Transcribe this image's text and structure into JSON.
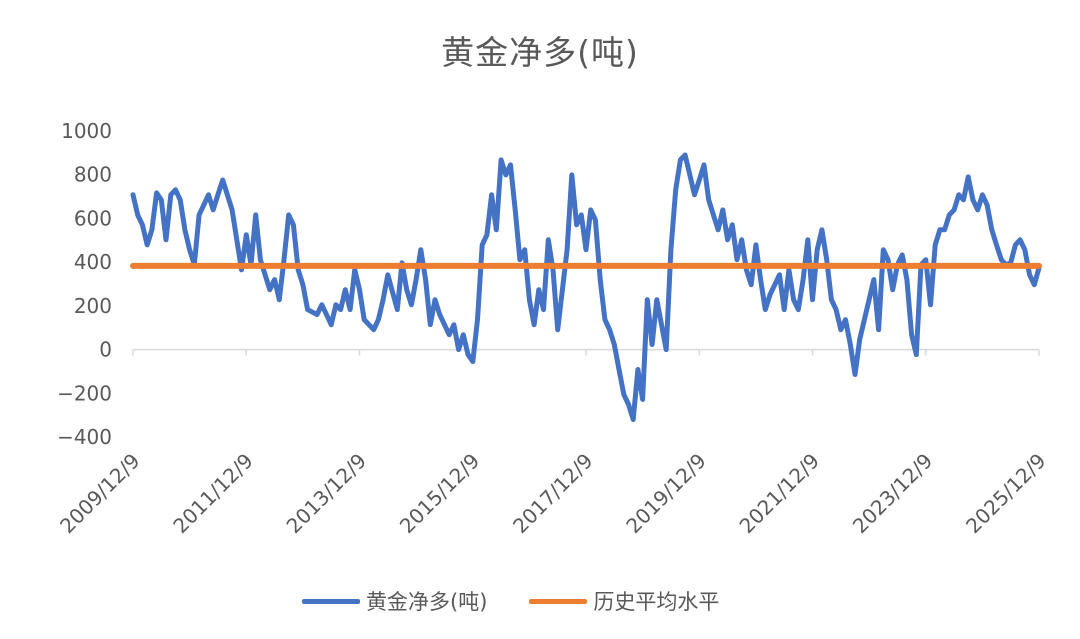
{
  "chart_data": {
    "type": "line",
    "title": "黄金净多(吨)",
    "xlabel": "",
    "ylabel": "",
    "ylim": [
      -400,
      1000
    ],
    "yticks": [
      "1000",
      "800",
      "600",
      "400",
      "200",
      "0",
      "-200",
      "-400"
    ],
    "ytick_values": [
      1000,
      800,
      600,
      400,
      200,
      0,
      -200,
      -400
    ],
    "xlim": [
      "2009-12",
      "2025-12"
    ],
    "xticks": [
      "2009/12/9",
      "2011/12/9",
      "2013/12/9",
      "2015/12/9",
      "2017/12/9",
      "2019/12/9",
      "2021/12/9",
      "2023/12/9",
      "2025/12/9"
    ],
    "xtick_dates": [
      "2009-12",
      "2011-12",
      "2013-12",
      "2015-12",
      "2017-12",
      "2019-12",
      "2021-12",
      "2023-12",
      "2025-12"
    ],
    "grid": false,
    "legend_position": "bottom",
    "series": [
      {
        "name": "黄金净多(吨)",
        "color": "#4472C4",
        "points": [
          [
            "2009-12",
            708
          ],
          [
            "2010-01",
            616
          ],
          [
            "2010-02",
            571
          ],
          [
            "2010-03",
            479
          ],
          [
            "2010-04",
            548
          ],
          [
            "2010-05",
            717
          ],
          [
            "2010-06",
            685
          ],
          [
            "2010-07",
            502
          ],
          [
            "2010-08",
            708
          ],
          [
            "2010-09",
            731
          ],
          [
            "2010-10",
            685
          ],
          [
            "2010-11",
            548
          ],
          [
            "2010-12",
            457
          ],
          [
            "2011-01",
            388
          ],
          [
            "2011-02",
            616
          ],
          [
            "2011-03",
            662
          ],
          [
            "2011-04",
            708
          ],
          [
            "2011-05",
            639
          ],
          [
            "2011-06",
            708
          ],
          [
            "2011-07",
            776
          ],
          [
            "2011-09",
            639
          ],
          [
            "2011-10",
            502
          ],
          [
            "2011-11",
            365
          ],
          [
            "2011-12",
            525
          ],
          [
            "2012-01",
            388
          ],
          [
            "2012-02",
            616
          ],
          [
            "2012-03",
            411
          ],
          [
            "2012-04",
            342
          ],
          [
            "2012-05",
            274
          ],
          [
            "2012-06",
            320
          ],
          [
            "2012-07",
            228
          ],
          [
            "2012-08",
            411
          ],
          [
            "2012-09",
            616
          ],
          [
            "2012-10",
            571
          ],
          [
            "2012-11",
            365
          ],
          [
            "2012-12",
            297
          ],
          [
            "2013-01",
            183
          ],
          [
            "2013-03",
            160
          ],
          [
            "2013-04",
            205
          ],
          [
            "2013-05",
            160
          ],
          [
            "2013-06",
            114
          ],
          [
            "2013-07",
            205
          ],
          [
            "2013-08",
            183
          ],
          [
            "2013-09",
            274
          ],
          [
            "2013-10",
            183
          ],
          [
            "2013-11",
            365
          ],
          [
            "2013-12",
            274
          ],
          [
            "2014-01",
            137
          ],
          [
            "2014-03",
            91
          ],
          [
            "2014-04",
            137
          ],
          [
            "2014-05",
            228
          ],
          [
            "2014-06",
            342
          ],
          [
            "2014-08",
            183
          ],
          [
            "2014-09",
            397
          ],
          [
            "2014-10",
            274
          ],
          [
            "2014-11",
            205
          ],
          [
            "2014-12",
            320
          ],
          [
            "2015-01",
            457
          ],
          [
            "2015-02",
            320
          ],
          [
            "2015-03",
            114
          ],
          [
            "2015-04",
            228
          ],
          [
            "2015-05",
            160
          ],
          [
            "2015-07",
            68
          ],
          [
            "2015-08",
            114
          ],
          [
            "2015-09",
            0
          ],
          [
            "2015-10",
            68
          ],
          [
            "2015-11",
            -23
          ],
          [
            "2015-12",
            -55
          ],
          [
            "2016-01",
            137
          ],
          [
            "2016-02",
            479
          ],
          [
            "2016-03",
            525
          ],
          [
            "2016-04",
            708
          ],
          [
            "2016-05",
            548
          ],
          [
            "2016-06",
            868
          ],
          [
            "2016-07",
            799
          ],
          [
            "2016-08",
            845
          ],
          [
            "2016-09",
            639
          ],
          [
            "2016-10",
            411
          ],
          [
            "2016-11",
            457
          ],
          [
            "2016-12",
            228
          ],
          [
            "2017-01",
            114
          ],
          [
            "2017-02",
            274
          ],
          [
            "2017-03",
            183
          ],
          [
            "2017-04",
            502
          ],
          [
            "2017-05",
            365
          ],
          [
            "2017-06",
            91
          ],
          [
            "2017-08",
            457
          ],
          [
            "2017-09",
            799
          ],
          [
            "2017-10",
            571
          ],
          [
            "2017-11",
            616
          ],
          [
            "2017-12",
            457
          ],
          [
            "2018-01",
            639
          ],
          [
            "2018-02",
            593
          ],
          [
            "2018-03",
            320
          ],
          [
            "2018-04",
            137
          ],
          [
            "2018-05",
            91
          ],
          [
            "2018-06",
            23
          ],
          [
            "2018-07",
            -91
          ],
          [
            "2018-08",
            -205
          ],
          [
            "2018-09",
            -251
          ],
          [
            "2018-10",
            -320
          ],
          [
            "2018-11",
            -91
          ],
          [
            "2018-12",
            -228
          ],
          [
            "2019-01",
            228
          ],
          [
            "2019-02",
            23
          ],
          [
            "2019-03",
            228
          ],
          [
            "2019-04",
            114
          ],
          [
            "2019-05",
            0
          ],
          [
            "2019-06",
            457
          ],
          [
            "2019-07",
            731
          ],
          [
            "2019-08",
            868
          ],
          [
            "2019-09",
            890
          ],
          [
            "2019-10",
            800
          ],
          [
            "2019-11",
            708
          ],
          [
            "2019-12",
            776
          ],
          [
            "2020-01",
            845
          ],
          [
            "2020-02",
            685
          ],
          [
            "2020-03",
            616
          ],
          [
            "2020-04",
            548
          ],
          [
            "2020-05",
            639
          ],
          [
            "2020-06",
            502
          ],
          [
            "2020-07",
            571
          ],
          [
            "2020-08",
            411
          ],
          [
            "2020-09",
            502
          ],
          [
            "2020-10",
            365
          ],
          [
            "2020-11",
            297
          ],
          [
            "2020-12",
            479
          ],
          [
            "2021-01",
            320
          ],
          [
            "2021-02",
            183
          ],
          [
            "2021-03",
            251
          ],
          [
            "2021-04",
            297
          ],
          [
            "2021-05",
            342
          ],
          [
            "2021-06",
            183
          ],
          [
            "2021-07",
            365
          ],
          [
            "2021-08",
            228
          ],
          [
            "2021-09",
            183
          ],
          [
            "2021-10",
            320
          ],
          [
            "2021-11",
            502
          ],
          [
            "2021-12",
            228
          ],
          [
            "2022-01",
            457
          ],
          [
            "2022-02",
            548
          ],
          [
            "2022-03",
            411
          ],
          [
            "2022-04",
            228
          ],
          [
            "2022-05",
            183
          ],
          [
            "2022-06",
            91
          ],
          [
            "2022-07",
            137
          ],
          [
            "2022-08",
            23
          ],
          [
            "2022-09",
            -114
          ],
          [
            "2022-10",
            46
          ],
          [
            "2022-11",
            137
          ],
          [
            "2022-12",
            228
          ],
          [
            "2023-01",
            320
          ],
          [
            "2023-02",
            91
          ],
          [
            "2023-03",
            457
          ],
          [
            "2023-04",
            411
          ],
          [
            "2023-05",
            274
          ],
          [
            "2023-06",
            388
          ],
          [
            "2023-07",
            433
          ],
          [
            "2023-08",
            320
          ],
          [
            "2023-09",
            68
          ],
          [
            "2023-10",
            -23
          ],
          [
            "2023-11",
            388
          ],
          [
            "2023-12",
            411
          ],
          [
            "2024-01",
            205
          ],
          [
            "2024-02",
            479
          ],
          [
            "2024-03",
            548
          ],
          [
            "2024-04",
            548
          ],
          [
            "2024-05",
            616
          ],
          [
            "2024-06",
            639
          ],
          [
            "2024-07",
            708
          ],
          [
            "2024-08",
            685
          ],
          [
            "2024-09",
            790
          ],
          [
            "2024-10",
            685
          ],
          [
            "2024-11",
            639
          ],
          [
            "2024-12",
            708
          ],
          [
            "2025-01",
            662
          ],
          [
            "2025-02",
            548
          ],
          [
            "2025-03",
            479
          ],
          [
            "2025-04",
            411
          ],
          [
            "2025-05",
            388
          ],
          [
            "2025-06",
            397
          ],
          [
            "2025-07",
            479
          ],
          [
            "2025-08",
            502
          ],
          [
            "2025-09",
            457
          ],
          [
            "2025-10",
            342
          ],
          [
            "2025-11",
            297
          ],
          [
            "2025-12",
            374
          ]
        ]
      },
      {
        "name": "历史平均水平",
        "color": "#ED7D31",
        "points": [
          [
            "2009-12",
            383
          ],
          [
            "2025-12",
            383
          ]
        ]
      }
    ]
  }
}
